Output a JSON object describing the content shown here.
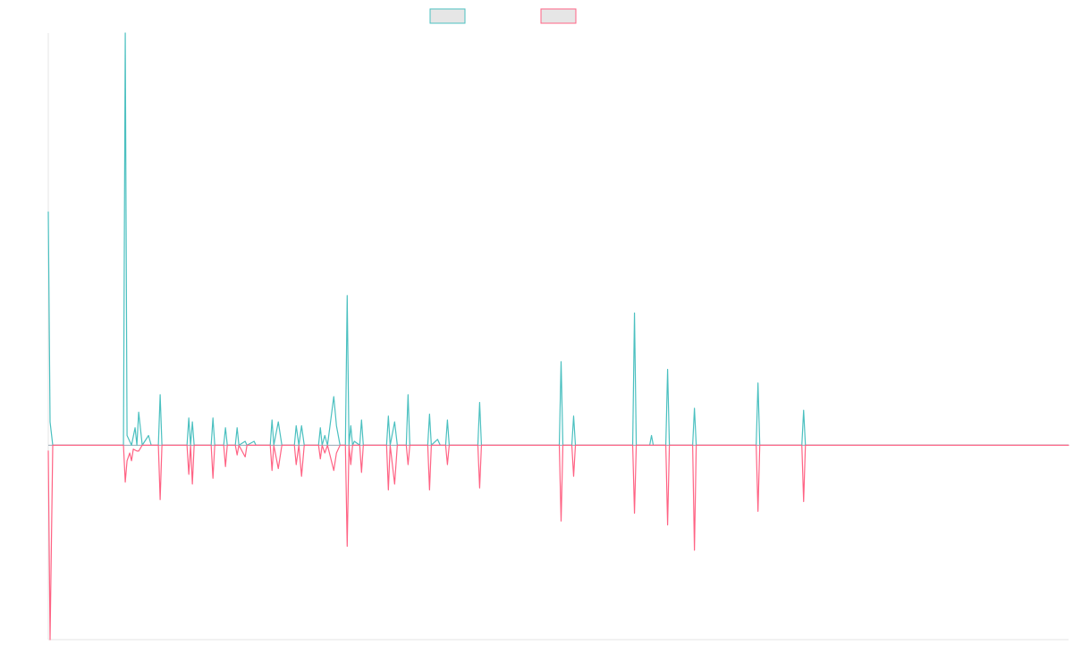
{
  "chart_data": {
    "type": "line",
    "title": "",
    "xlabel": "",
    "ylabel": "",
    "grid": false,
    "legend": "top-center",
    "ylim": [
      -1.0,
      2.12
    ],
    "xlim": [
      0,
      1140
    ],
    "baseline": 0,
    "series": [
      {
        "name": "",
        "color": "#4bc0c0",
        "points": [
          [
            0,
            1.2
          ],
          [
            2,
            0.12
          ],
          [
            5,
            0
          ],
          [
            84,
            0
          ],
          [
            86,
            2.12
          ],
          [
            88,
            0.05
          ],
          [
            93,
            0
          ],
          [
            97,
            0.09
          ],
          [
            99,
            0
          ],
          [
            101,
            0.17
          ],
          [
            105,
            0
          ],
          [
            112,
            0.05
          ],
          [
            115,
            0
          ],
          [
            123,
            0
          ],
          [
            125,
            0.26
          ],
          [
            127,
            0
          ],
          [
            155,
            0
          ],
          [
            157,
            0.14
          ],
          [
            159,
            0
          ],
          [
            161,
            0.12
          ],
          [
            163,
            0
          ],
          [
            182,
            0
          ],
          [
            184,
            0.14
          ],
          [
            186,
            0
          ],
          [
            196,
            0
          ],
          [
            198,
            0.09
          ],
          [
            200,
            0
          ],
          [
            209,
            0
          ],
          [
            211,
            0.09
          ],
          [
            213,
            0
          ],
          [
            220,
            0.02
          ],
          [
            222,
            0
          ],
          [
            230,
            0.02
          ],
          [
            232,
            0
          ],
          [
            248,
            0
          ],
          [
            250,
            0.13
          ],
          [
            252,
            0
          ],
          [
            257,
            0.12
          ],
          [
            261,
            0
          ],
          [
            275,
            0
          ],
          [
            277,
            0.1
          ],
          [
            280,
            0
          ],
          [
            283,
            0.1
          ],
          [
            286,
            0
          ],
          [
            302,
            0
          ],
          [
            304,
            0.09
          ],
          [
            306,
            0
          ],
          [
            309,
            0.05
          ],
          [
            312,
            0
          ],
          [
            319,
            0.25
          ],
          [
            322,
            0.1
          ],
          [
            326,
            0
          ],
          [
            332,
            0
          ],
          [
            334,
            0.77
          ],
          [
            336,
            0
          ],
          [
            338,
            0.1
          ],
          [
            340,
            0
          ],
          [
            342,
            0.02
          ],
          [
            348,
            0
          ],
          [
            350,
            0.13
          ],
          [
            352,
            0
          ],
          [
            378,
            0
          ],
          [
            380,
            0.15
          ],
          [
            382,
            0
          ],
          [
            387,
            0.12
          ],
          [
            390,
            0
          ],
          [
            400,
            0
          ],
          [
            402,
            0.26
          ],
          [
            404,
            0
          ],
          [
            424,
            0
          ],
          [
            426,
            0.16
          ],
          [
            428,
            0
          ],
          [
            435,
            0.03
          ],
          [
            438,
            0
          ],
          [
            444,
            0
          ],
          [
            446,
            0.13
          ],
          [
            448,
            0
          ],
          [
            480,
            0
          ],
          [
            482,
            0.22
          ],
          [
            484,
            0
          ],
          [
            571,
            0
          ],
          [
            573,
            0.43
          ],
          [
            575,
            0
          ],
          [
            585,
            0
          ],
          [
            587,
            0.15
          ],
          [
            589,
            0
          ],
          [
            653,
            0
          ],
          [
            655,
            0.68
          ],
          [
            657,
            0
          ],
          [
            672,
            0
          ],
          [
            674,
            0.05
          ],
          [
            676,
            0
          ],
          [
            690,
            0
          ],
          [
            692,
            0.39
          ],
          [
            694,
            0
          ],
          [
            720,
            0
          ],
          [
            722,
            0.19
          ],
          [
            724,
            0
          ],
          [
            791,
            0
          ],
          [
            793,
            0.32
          ],
          [
            795,
            0
          ],
          [
            842,
            0
          ],
          [
            844,
            0.18
          ],
          [
            846,
            0
          ],
          [
            1140,
            0
          ]
        ]
      },
      {
        "name": "",
        "color": "#ff6384",
        "points": [
          [
            0,
            -0.03
          ],
          [
            2,
            -1.0
          ],
          [
            5,
            0
          ],
          [
            84,
            0
          ],
          [
            86,
            -0.19
          ],
          [
            88,
            -0.08
          ],
          [
            91,
            -0.04
          ],
          [
            93,
            -0.08
          ],
          [
            95,
            -0.02
          ],
          [
            99,
            -0.03
          ],
          [
            101,
            -0.03
          ],
          [
            105,
            0
          ],
          [
            123,
            0
          ],
          [
            125,
            -0.28
          ],
          [
            127,
            0
          ],
          [
            155,
            0
          ],
          [
            157,
            -0.15
          ],
          [
            159,
            0
          ],
          [
            161,
            -0.2
          ],
          [
            163,
            0
          ],
          [
            182,
            0
          ],
          [
            184,
            -0.17
          ],
          [
            186,
            0
          ],
          [
            196,
            0
          ],
          [
            198,
            -0.11
          ],
          [
            200,
            0
          ],
          [
            209,
            0
          ],
          [
            211,
            -0.05
          ],
          [
            213,
            0
          ],
          [
            220,
            -0.06
          ],
          [
            222,
            0
          ],
          [
            230,
            0
          ],
          [
            248,
            0
          ],
          [
            250,
            -0.13
          ],
          [
            252,
            0
          ],
          [
            257,
            -0.12
          ],
          [
            261,
            0
          ],
          [
            275,
            0
          ],
          [
            277,
            -0.1
          ],
          [
            280,
            0
          ],
          [
            283,
            -0.16
          ],
          [
            286,
            0
          ],
          [
            302,
            0
          ],
          [
            304,
            -0.07
          ],
          [
            306,
            0
          ],
          [
            309,
            -0.04
          ],
          [
            312,
            0
          ],
          [
            319,
            -0.13
          ],
          [
            322,
            -0.04
          ],
          [
            326,
            0
          ],
          [
            332,
            0
          ],
          [
            334,
            -0.52
          ],
          [
            336,
            0
          ],
          [
            338,
            -0.1
          ],
          [
            340,
            0
          ],
          [
            348,
            0
          ],
          [
            350,
            -0.14
          ],
          [
            352,
            0
          ],
          [
            378,
            0
          ],
          [
            380,
            -0.23
          ],
          [
            382,
            0
          ],
          [
            387,
            -0.2
          ],
          [
            390,
            0
          ],
          [
            400,
            0
          ],
          [
            402,
            -0.1
          ],
          [
            404,
            0
          ],
          [
            424,
            0
          ],
          [
            426,
            -0.23
          ],
          [
            428,
            0
          ],
          [
            444,
            0
          ],
          [
            446,
            -0.1
          ],
          [
            448,
            0
          ],
          [
            480,
            0
          ],
          [
            482,
            -0.22
          ],
          [
            484,
            0
          ],
          [
            571,
            0
          ],
          [
            573,
            -0.39
          ],
          [
            575,
            0
          ],
          [
            585,
            0
          ],
          [
            587,
            -0.16
          ],
          [
            589,
            0
          ],
          [
            653,
            0
          ],
          [
            655,
            -0.35
          ],
          [
            657,
            0
          ],
          [
            690,
            0
          ],
          [
            692,
            -0.41
          ],
          [
            694,
            0
          ],
          [
            720,
            0
          ],
          [
            722,
            -0.54
          ],
          [
            724,
            0
          ],
          [
            791,
            0
          ],
          [
            793,
            -0.34
          ],
          [
            795,
            0
          ],
          [
            842,
            0
          ],
          [
            844,
            -0.29
          ],
          [
            846,
            0
          ],
          [
            1140,
            0
          ]
        ]
      }
    ]
  }
}
